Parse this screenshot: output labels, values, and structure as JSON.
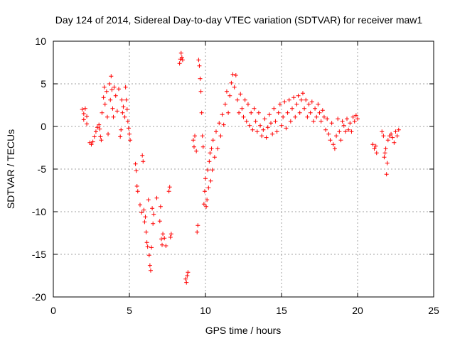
{
  "chart_data": {
    "type": "scatter",
    "title": "Day 124 of 2014, Sidereal Day-to-day VTEC variation (SDTVAR) for receiver maw1",
    "xlabel": "GPS time / hours",
    "ylabel": "SDTVAR / TECUs",
    "xlim": [
      0,
      25
    ],
    "ylim": [
      -20,
      10
    ],
    "xticks": [
      "0",
      "5",
      "10",
      "15",
      "20",
      "25"
    ],
    "yticks": [
      "-20",
      "-15",
      "-10",
      "-5",
      "0",
      "5",
      "10"
    ],
    "grid": true,
    "marker": "+",
    "marker_color": "#ff0000",
    "series": [
      {
        "name": "maw1",
        "points": [
          [
            1.9,
            2.0
          ],
          [
            2.0,
            1.5
          ],
          [
            2.0,
            0.8
          ],
          [
            2.1,
            2.1
          ],
          [
            2.2,
            1.2
          ],
          [
            2.2,
            0.3
          ],
          [
            2.4,
            -1.9
          ],
          [
            2.5,
            -2.1
          ],
          [
            2.6,
            -1.8
          ],
          [
            2.7,
            -1.2
          ],
          [
            2.8,
            -0.6
          ],
          [
            2.9,
            -0.1
          ],
          [
            3.0,
            0.2
          ],
          [
            3.05,
            -0.3
          ],
          [
            3.1,
            -1.2
          ],
          [
            3.15,
            -1.6
          ],
          [
            3.2,
            1.6
          ],
          [
            3.3,
            3.4
          ],
          [
            3.35,
            4.6
          ],
          [
            3.4,
            2.6
          ],
          [
            3.5,
            4.1
          ],
          [
            3.55,
            1.1
          ],
          [
            3.6,
            -0.9
          ],
          [
            3.7,
            5.0
          ],
          [
            3.75,
            3.1
          ],
          [
            3.8,
            5.9
          ],
          [
            3.85,
            4.3
          ],
          [
            3.9,
            2.1
          ],
          [
            3.95,
            1.1
          ],
          [
            4.0,
            4.6
          ],
          [
            4.1,
            3.6
          ],
          [
            4.2,
            1.8
          ],
          [
            4.3,
            4.4
          ],
          [
            4.4,
            -1.2
          ],
          [
            4.45,
            -0.4
          ],
          [
            4.5,
            3.1
          ],
          [
            4.55,
            1.6
          ],
          [
            4.6,
            2.3
          ],
          [
            4.7,
            1.1
          ],
          [
            4.75,
            4.6
          ],
          [
            4.8,
            3.1
          ],
          [
            4.85,
            2.0
          ],
          [
            4.9,
            0.6
          ],
          [
            4.95,
            -0.2
          ],
          [
            5.0,
            -0.9
          ],
          [
            5.05,
            -1.6
          ],
          [
            5.4,
            -4.4
          ],
          [
            5.45,
            -5.2
          ],
          [
            5.5,
            -7.0
          ],
          [
            5.55,
            -7.6
          ],
          [
            5.7,
            -9.2
          ],
          [
            5.8,
            -10.1
          ],
          [
            5.85,
            -3.4
          ],
          [
            5.9,
            -4.1
          ],
          [
            5.95,
            -9.8
          ],
          [
            6.0,
            -11.2
          ],
          [
            6.05,
            -10.6
          ],
          [
            6.1,
            -12.4
          ],
          [
            6.15,
            -13.6
          ],
          [
            6.2,
            -14.1
          ],
          [
            6.25,
            -8.6
          ],
          [
            6.3,
            -15.1
          ],
          [
            6.35,
            -16.3
          ],
          [
            6.4,
            -16.9
          ],
          [
            6.45,
            -14.2
          ],
          [
            6.5,
            -9.6
          ],
          [
            6.55,
            -11.4
          ],
          [
            6.6,
            -10.3
          ],
          [
            6.8,
            -8.4
          ],
          [
            7.0,
            -11.1
          ],
          [
            7.05,
            -9.4
          ],
          [
            7.1,
            -13.2
          ],
          [
            7.15,
            -13.9
          ],
          [
            7.2,
            -12.6
          ],
          [
            7.3,
            -13.1
          ],
          [
            7.4,
            -14.0
          ],
          [
            7.6,
            -7.6
          ],
          [
            7.65,
            -7.1
          ],
          [
            7.7,
            -13.0
          ],
          [
            7.75,
            -12.6
          ],
          [
            8.3,
            7.4
          ],
          [
            8.35,
            7.9
          ],
          [
            8.4,
            8.6
          ],
          [
            8.45,
            8.1
          ],
          [
            8.5,
            7.8
          ],
          [
            8.7,
            -17.9
          ],
          [
            8.75,
            -18.3
          ],
          [
            8.8,
            -17.5
          ],
          [
            8.85,
            -17.1
          ],
          [
            9.2,
            -1.6
          ],
          [
            9.25,
            -2.4
          ],
          [
            9.3,
            -1.1
          ],
          [
            9.4,
            -2.9
          ],
          [
            9.45,
            -12.4
          ],
          [
            9.5,
            -11.6
          ],
          [
            9.55,
            7.8
          ],
          [
            9.6,
            7.1
          ],
          [
            9.65,
            5.6
          ],
          [
            9.7,
            4.1
          ],
          [
            9.75,
            1.6
          ],
          [
            9.8,
            -1.1
          ],
          [
            9.85,
            -2.4
          ],
          [
            9.9,
            -9.1
          ],
          [
            9.95,
            -7.6
          ],
          [
            10.0,
            -6.1
          ],
          [
            10.05,
            -9.4
          ],
          [
            10.1,
            -8.6
          ],
          [
            10.15,
            -5.1
          ],
          [
            10.2,
            -7.2
          ],
          [
            10.25,
            -4.1
          ],
          [
            10.3,
            -3.1
          ],
          [
            10.35,
            -6.4
          ],
          [
            10.4,
            -2.6
          ],
          [
            10.45,
            -5.1
          ],
          [
            10.5,
            -1.6
          ],
          [
            10.6,
            -3.6
          ],
          [
            10.7,
            -0.6
          ],
          [
            10.8,
            -2.6
          ],
          [
            10.9,
            0.4
          ],
          [
            11.0,
            -1.1
          ],
          [
            11.1,
            1.4
          ],
          [
            11.2,
            0.2
          ],
          [
            11.3,
            2.6
          ],
          [
            11.4,
            4.1
          ],
          [
            11.5,
            1.6
          ],
          [
            11.6,
            3.6
          ],
          [
            11.7,
            5.1
          ],
          [
            11.8,
            6.1
          ],
          [
            11.9,
            4.6
          ],
          [
            12.0,
            6.0
          ],
          [
            12.1,
            3.1
          ],
          [
            12.2,
            1.6
          ],
          [
            12.3,
            3.8
          ],
          [
            12.4,
            2.1
          ],
          [
            12.5,
            1.1
          ],
          [
            12.6,
            3.1
          ],
          [
            12.7,
            0.6
          ],
          [
            12.8,
            2.6
          ],
          [
            12.9,
            0.1
          ],
          [
            13.0,
            1.6
          ],
          [
            13.1,
            -0.4
          ],
          [
            13.2,
            2.1
          ],
          [
            13.3,
            0.6
          ],
          [
            13.4,
            -0.6
          ],
          [
            13.5,
            1.6
          ],
          [
            13.6,
            0.1
          ],
          [
            13.7,
            -1.1
          ],
          [
            13.8,
            -0.4
          ],
          [
            13.9,
            0.9
          ],
          [
            14.0,
            -1.3
          ],
          [
            14.1,
            -0.1
          ],
          [
            14.2,
            1.4
          ],
          [
            14.3,
            0.4
          ],
          [
            14.4,
            -0.9
          ],
          [
            14.5,
            2.1
          ],
          [
            14.6,
            0.6
          ],
          [
            14.7,
            -0.6
          ],
          [
            14.8,
            1.6
          ],
          [
            14.9,
            2.6
          ],
          [
            15.0,
            0.1
          ],
          [
            15.1,
            1.1
          ],
          [
            15.2,
            2.9
          ],
          [
            15.3,
            -0.2
          ],
          [
            15.4,
            1.6
          ],
          [
            15.5,
            3.1
          ],
          [
            15.6,
            0.6
          ],
          [
            15.7,
            2.1
          ],
          [
            15.8,
            3.4
          ],
          [
            15.9,
            1.1
          ],
          [
            16.0,
            2.6
          ],
          [
            16.1,
            3.6
          ],
          [
            16.2,
            1.6
          ],
          [
            16.3,
            3.1
          ],
          [
            16.4,
            3.9
          ],
          [
            16.5,
            2.1
          ],
          [
            16.6,
            3.1
          ],
          [
            16.7,
            1.1
          ],
          [
            16.8,
            2.6
          ],
          [
            16.9,
            1.6
          ],
          [
            17.0,
            2.9
          ],
          [
            17.1,
            0.6
          ],
          [
            17.2,
            2.1
          ],
          [
            17.3,
            1.1
          ],
          [
            17.4,
            2.6
          ],
          [
            17.5,
            1.6
          ],
          [
            17.6,
            0.6
          ],
          [
            17.7,
            1.9
          ],
          [
            17.8,
            1.1
          ],
          [
            17.9,
            -0.4
          ],
          [
            18.0,
            0.9
          ],
          [
            18.1,
            -0.9
          ],
          [
            18.2,
            -1.6
          ],
          [
            18.3,
            0.4
          ],
          [
            18.4,
            -2.1
          ],
          [
            18.5,
            -2.6
          ],
          [
            18.6,
            -1.1
          ],
          [
            18.7,
            0.9
          ],
          [
            18.8,
            -0.6
          ],
          [
            18.9,
            -1.6
          ],
          [
            19.0,
            0.6
          ],
          [
            19.1,
            0.1
          ],
          [
            19.2,
            -0.6
          ],
          [
            19.3,
            0.9
          ],
          [
            19.4,
            -0.4
          ],
          [
            19.5,
            0.4
          ],
          [
            19.6,
            -0.6
          ],
          [
            19.7,
            1.1
          ],
          [
            19.8,
            0.6
          ],
          [
            19.9,
            1.3
          ],
          [
            20.0,
            0.9
          ],
          [
            21.0,
            -2.1
          ],
          [
            21.1,
            -2.6
          ],
          [
            21.2,
            -2.3
          ],
          [
            21.25,
            -3.1
          ],
          [
            21.6,
            -0.6
          ],
          [
            21.7,
            -1.1
          ],
          [
            21.75,
            -3.6
          ],
          [
            21.8,
            -3.1
          ],
          [
            21.85,
            -2.6
          ],
          [
            21.9,
            -5.6
          ],
          [
            21.95,
            -4.3
          ],
          [
            22.0,
            -1.6
          ],
          [
            22.1,
            -1.1
          ],
          [
            22.2,
            -0.9
          ],
          [
            22.3,
            -1.3
          ],
          [
            22.4,
            -1.9
          ],
          [
            22.5,
            -0.6
          ],
          [
            22.6,
            -1.1
          ],
          [
            22.7,
            -0.4
          ]
        ]
      }
    ]
  }
}
